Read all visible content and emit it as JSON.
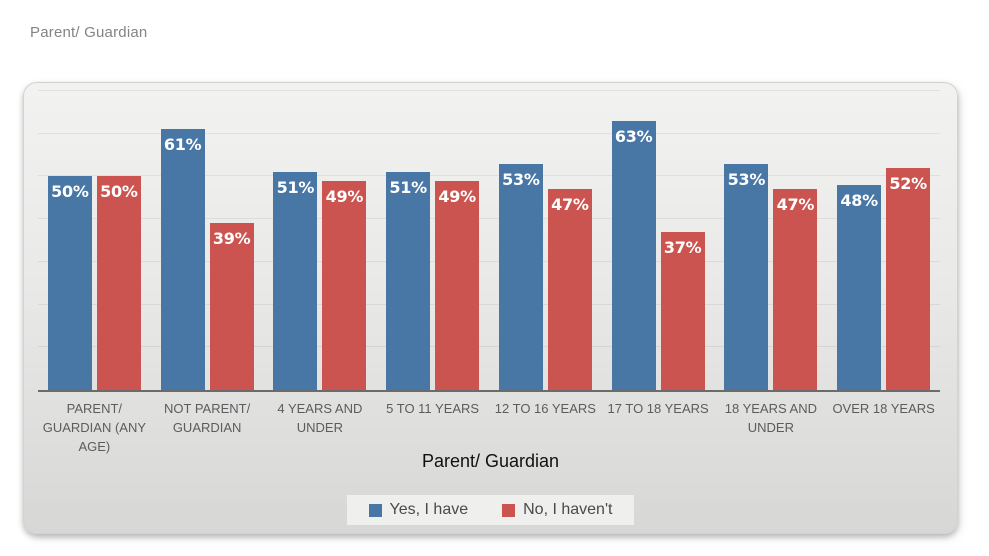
{
  "header": {
    "title": "Parent/ Guardian"
  },
  "chart_data": {
    "type": "bar",
    "title": "Parent/ Guardian",
    "xlabel": "Parent/ Guardian",
    "ylabel": "",
    "value_suffix": "%",
    "ylim": [
      0,
      70
    ],
    "gridline_step": 10,
    "grid": true,
    "legend_position": "bottom",
    "data_labels_position": "inside-end",
    "categories": [
      "PARENT/ GUARDIAN (ANY AGE)",
      "NOT PARENT/ GUARDIAN",
      "4 YEARS AND UNDER",
      "5 TO 11 YEARS",
      "12 TO 16 YEARS",
      "17 TO 18 YEARS",
      "18 YEARS AND UNDER",
      "OVER 18 YEARS"
    ],
    "series": [
      {
        "name": "Yes, I have",
        "color": "#4877A6",
        "values": [
          50,
          61,
          51,
          51,
          53,
          63,
          53,
          48
        ]
      },
      {
        "name": "No, I haven't",
        "color": "#CC5450",
        "values": [
          50,
          39,
          49,
          49,
          47,
          37,
          47,
          52
        ]
      }
    ]
  }
}
